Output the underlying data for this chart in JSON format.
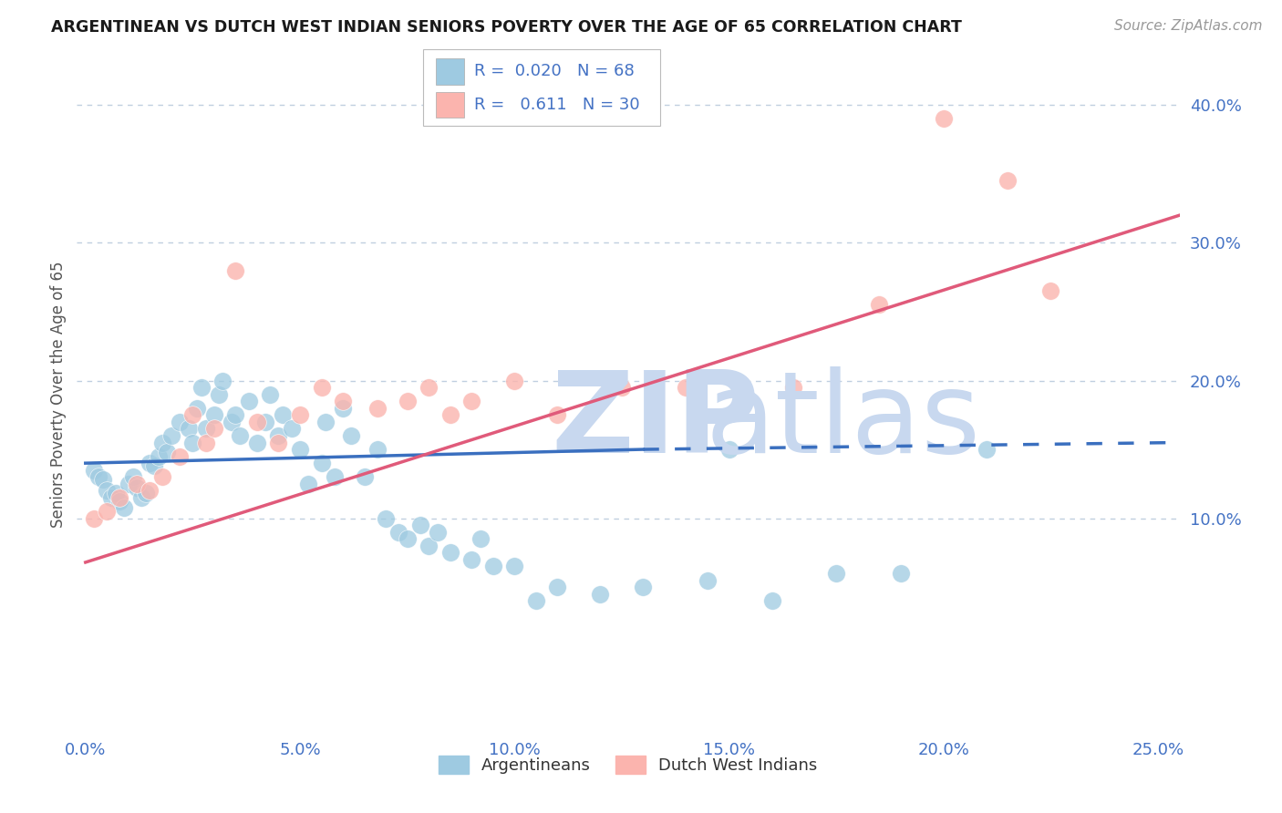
{
  "title": "ARGENTINEAN VS DUTCH WEST INDIAN SENIORS POVERTY OVER THE AGE OF 65 CORRELATION CHART",
  "source": "Source: ZipAtlas.com",
  "ylabel": "Seniors Poverty Over the Age of 65",
  "xlim": [
    -0.002,
    0.255
  ],
  "ylim": [
    -0.055,
    0.435
  ],
  "xticks": [
    0.0,
    0.05,
    0.1,
    0.15,
    0.2,
    0.25
  ],
  "yticks": [
    0.1,
    0.2,
    0.3,
    0.4
  ],
  "ytick_labels": [
    "10.0%",
    "20.0%",
    "30.0%",
    "40.0%"
  ],
  "xtick_labels": [
    "0.0%",
    "5.0%",
    "10.0%",
    "15.0%",
    "20.0%",
    "25.0%"
  ],
  "color_blue": "#9ecae1",
  "color_pink": "#fbb4ae",
  "color_blue_line": "#3a6fbf",
  "color_pink_line": "#e05a7a",
  "color_text_blue": "#4472c4",
  "watermark_color": "#c8d8ef",
  "background_color": "#ffffff",
  "grid_color": "#c0cfe0",
  "arg_x": [
    0.002,
    0.003,
    0.004,
    0.005,
    0.006,
    0.007,
    0.008,
    0.009,
    0.01,
    0.011,
    0.012,
    0.013,
    0.014,
    0.015,
    0.016,
    0.017,
    0.018,
    0.019,
    0.02,
    0.022,
    0.024,
    0.025,
    0.026,
    0.027,
    0.028,
    0.03,
    0.031,
    0.032,
    0.034,
    0.035,
    0.036,
    0.038,
    0.04,
    0.042,
    0.043,
    0.045,
    0.046,
    0.048,
    0.05,
    0.052,
    0.055,
    0.056,
    0.058,
    0.06,
    0.062,
    0.065,
    0.068,
    0.07,
    0.073,
    0.075,
    0.078,
    0.08,
    0.082,
    0.085,
    0.09,
    0.092,
    0.095,
    0.1,
    0.105,
    0.11,
    0.12,
    0.13,
    0.145,
    0.15,
    0.16,
    0.175,
    0.19,
    0.21
  ],
  "arg_y": [
    0.135,
    0.13,
    0.128,
    0.12,
    0.115,
    0.118,
    0.112,
    0.108,
    0.125,
    0.13,
    0.122,
    0.115,
    0.118,
    0.14,
    0.138,
    0.145,
    0.155,
    0.148,
    0.16,
    0.17,
    0.165,
    0.155,
    0.18,
    0.195,
    0.165,
    0.175,
    0.19,
    0.2,
    0.17,
    0.175,
    0.16,
    0.185,
    0.155,
    0.17,
    0.19,
    0.16,
    0.175,
    0.165,
    0.15,
    0.125,
    0.14,
    0.17,
    0.13,
    0.18,
    0.16,
    0.13,
    0.15,
    0.1,
    0.09,
    0.085,
    0.095,
    0.08,
    0.09,
    0.075,
    0.07,
    0.085,
    0.065,
    0.065,
    0.04,
    0.05,
    0.045,
    0.05,
    0.055,
    0.15,
    0.04,
    0.06,
    0.06,
    0.15
  ],
  "dutch_x": [
    0.002,
    0.005,
    0.008,
    0.012,
    0.015,
    0.018,
    0.022,
    0.025,
    0.028,
    0.03,
    0.035,
    0.04,
    0.045,
    0.05,
    0.055,
    0.06,
    0.068,
    0.075,
    0.08,
    0.085,
    0.09,
    0.1,
    0.11,
    0.125,
    0.14,
    0.165,
    0.185,
    0.2,
    0.215,
    0.225
  ],
  "dutch_y": [
    0.1,
    0.105,
    0.115,
    0.125,
    0.12,
    0.13,
    0.145,
    0.175,
    0.155,
    0.165,
    0.28,
    0.17,
    0.155,
    0.175,
    0.195,
    0.185,
    0.18,
    0.185,
    0.195,
    0.175,
    0.185,
    0.2,
    0.175,
    0.195,
    0.195,
    0.195,
    0.255,
    0.39,
    0.345,
    0.265
  ],
  "arg_trendline_x0": 0.0,
  "arg_trendline_x1": 0.13,
  "arg_trendline_y0": 0.14,
  "arg_trendline_y1": 0.15,
  "arg_trendline_dash_x0": 0.13,
  "arg_trendline_dash_x1": 0.255,
  "arg_trendline_dash_y0": 0.15,
  "arg_trendline_dash_y1": 0.155,
  "dutch_trendline_x0": 0.0,
  "dutch_trendline_x1": 0.255,
  "dutch_trendline_y0": 0.068,
  "dutch_trendline_y1": 0.32
}
